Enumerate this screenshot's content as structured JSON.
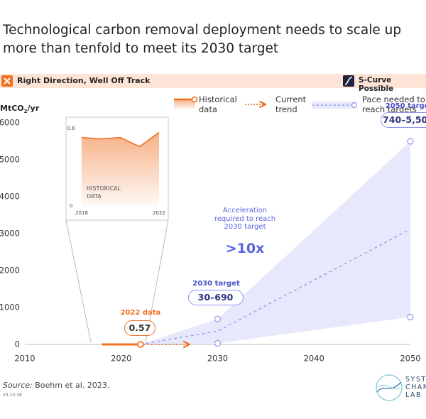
{
  "header": {
    "title": "Technological carbon removal deployment needs to scale up more than tenfold to meet its 2030 target",
    "status": "Right Direction, Well Off Track",
    "badge": "S-Curve Possible"
  },
  "chart_data": [
    {
      "type": "line",
      "y_label": {
        "main": "MtCO",
        "sub": "2",
        "unit": "/yr"
      },
      "xlim": [
        2010,
        2050
      ],
      "xticks": [
        2010,
        2020,
        2030,
        2040,
        2050
      ],
      "ylim": [
        0,
        6000
      ],
      "yticks": [
        0,
        1000,
        2000,
        3000,
        4000,
        5000,
        6000
      ],
      "grid": false,
      "series": [
        {
          "name": "Historical data",
          "color": "#f07022",
          "style": "solid",
          "x": [
            2018,
            2019,
            2020,
            2021,
            2022
          ],
          "values": [
            0.53,
            0.52,
            0.53,
            0.46,
            0.57
          ],
          "annotation": "2022 data"
        },
        {
          "name": "Current trend",
          "color": "#f07022",
          "style": "dotted",
          "x": [
            2022,
            2027
          ],
          "values": [
            0.57,
            0.6
          ]
        },
        {
          "name": "Pace needed to reach targets",
          "color": "#8f94ea",
          "band_color": "#e7e8fb",
          "style": "dashed",
          "x": [
            2022,
            2030,
            2050
          ],
          "values": [
            0.57,
            360,
            3120
          ],
          "lower": [
            0.57,
            30,
            740
          ],
          "upper": [
            0.57,
            690,
            5500
          ],
          "target_labels": [
            null,
            "2030 target",
            "2050 target"
          ],
          "range_labels": [
            null,
            "30–690",
            "740–5,500"
          ]
        }
      ],
      "annotation": "Acceleration required to reach 2030 target",
      "annotation_value": ">10x"
    },
    {
      "type": "area",
      "label": "HISTORICAL DATA",
      "color": "#f07022",
      "x": [
        2018,
        2019,
        2020,
        2021,
        2022
      ],
      "values": [
        0.53,
        0.52,
        0.53,
        0.46,
        0.57
      ],
      "xlim": [
        2018,
        2022
      ],
      "xticks": [
        2018,
        2022
      ],
      "ylim": [
        0,
        0.6
      ],
      "yticks": [
        0,
        0.6
      ]
    }
  ],
  "footer": {
    "source_label": "Source:",
    "source": "Boehm et al. 2023.",
    "date": "23.10.16",
    "logo": "SYSTEMS CHANGE LAB"
  }
}
